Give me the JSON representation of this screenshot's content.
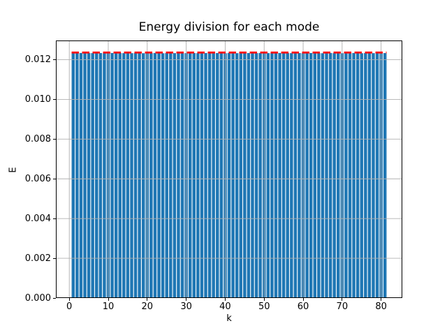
{
  "chart_data": {
    "type": "bar",
    "title": "Energy division for each mode",
    "xlabel": "k",
    "ylabel": "E",
    "x": [
      1,
      2,
      3,
      4,
      5,
      6,
      7,
      8,
      9,
      10,
      11,
      12,
      13,
      14,
      15,
      16,
      17,
      18,
      19,
      20,
      21,
      22,
      23,
      24,
      25,
      26,
      27,
      28,
      29,
      30,
      31,
      32,
      33,
      34,
      35,
      36,
      37,
      38,
      39,
      40,
      41,
      42,
      43,
      44,
      45,
      46,
      47,
      48,
      49,
      50,
      51,
      52,
      53,
      54,
      55,
      56,
      57,
      58,
      59,
      60,
      61,
      62,
      63,
      64,
      65,
      66,
      67,
      68,
      69,
      70,
      71,
      72,
      73,
      74,
      75,
      76,
      77,
      78,
      79,
      80,
      81
    ],
    "values": [
      0.012334,
      0.012329,
      0.012338,
      0.012325,
      0.012333,
      0.012331,
      0.012337,
      0.012334,
      0.012327,
      0.012331,
      0.012336,
      0.012324,
      0.012339,
      0.01233,
      0.012334,
      0.012328,
      0.012337,
      0.012333,
      0.012326,
      0.012335,
      0.012331,
      0.012338,
      0.012329,
      0.012324,
      0.012334,
      0.012337,
      0.01233,
      0.012333,
      0.012326,
      0.012331,
      0.012338,
      0.012334,
      0.012329,
      0.012325,
      0.012335,
      0.012337,
      0.01233,
      0.012334,
      0.012331,
      0.012326,
      0.012338,
      0.012333,
      0.012329,
      0.012336,
      0.012325,
      0.012334,
      0.01233,
      0.012333,
      0.012337,
      0.012326,
      0.012331,
      0.012335,
      0.012329,
      0.012338,
      0.012325,
      0.012333,
      0.01233,
      0.012337,
      0.012334,
      0.012327,
      0.012331,
      0.012336,
      0.012333,
      0.012329,
      0.012325,
      0.012335,
      0.012338,
      0.01233,
      0.012334,
      0.012326,
      0.012331,
      0.012333,
      0.012337,
      0.012329,
      0.012325,
      0.012334,
      0.012336,
      0.01233,
      0.012335,
      0.012331,
      0.012333
    ],
    "bar_width": 0.8,
    "bar_color": "#1f77b4",
    "xlim": [
      -3.44,
      85.44
    ],
    "ylim": [
      0,
      0.012967
    ],
    "xticks": [
      0,
      10,
      20,
      30,
      40,
      50,
      60,
      70,
      80
    ],
    "xtick_labels": [
      "0",
      "10",
      "20",
      "30",
      "40",
      "50",
      "60",
      "70",
      "80"
    ],
    "yticks": [
      0,
      0.002,
      0.004,
      0.006,
      0.008,
      0.01,
      0.012
    ],
    "ytick_labels": [
      "0.000",
      "0.002",
      "0.004",
      "0.006",
      "0.008",
      "0.010",
      "0.012"
    ],
    "grid": true,
    "grid_color": "#b0b0b0",
    "spine_color": "#000000",
    "legend": "none",
    "reference_line": {
      "value": 0.01236,
      "color": "#ff0000",
      "style": "dashed",
      "x_extent": [
        0.6,
        81.4
      ]
    }
  }
}
